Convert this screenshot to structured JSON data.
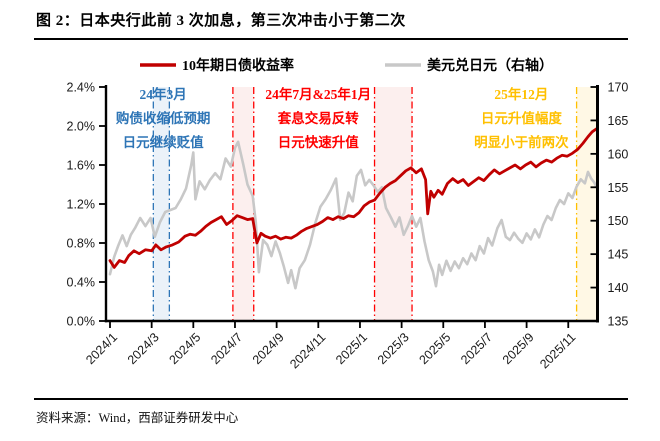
{
  "header": {
    "title": "图 2：日本央行此前 3 次加息，第三次冲击小于第二次"
  },
  "source": {
    "text": "资料来源：Wind，西部证券研发中心"
  },
  "colors": {
    "yield_line": "#C00000",
    "fx_line": "#C8C8C8",
    "annotation_blue": "#2E75B6",
    "annotation_red": "#FF0000",
    "annotation_yellow": "#FFC000",
    "axis": "#000000"
  },
  "chart_data": {
    "type": "line",
    "legend_position": "top",
    "grid": false,
    "legend": [
      {
        "name": "10年期日债收益率",
        "color": "#C00000",
        "axis": "left"
      },
      {
        "name": "美元兑日元（右轴）",
        "color": "#C8C8C8",
        "axis": "right"
      }
    ],
    "left_axis": {
      "min": 0,
      "max": 2.4,
      "ticks": [
        [
          0,
          "0.0%"
        ],
        [
          0.4,
          "0.4%"
        ],
        [
          0.8,
          "0.8%"
        ],
        [
          1.2,
          "1.2%"
        ],
        [
          1.6,
          "1.6%"
        ],
        [
          2.0,
          "2.0%"
        ],
        [
          2.4,
          "2.4%"
        ]
      ]
    },
    "right_axis": {
      "min": 135,
      "max": 170,
      "ticks": [
        [
          135,
          "135"
        ],
        [
          140,
          "140"
        ],
        [
          145,
          "145"
        ],
        [
          150,
          "150"
        ],
        [
          155,
          "155"
        ],
        [
          160,
          "160"
        ],
        [
          165,
          "165"
        ],
        [
          170,
          "170"
        ]
      ]
    },
    "x_ticks": [
      [
        0,
        "2024/1"
      ],
      [
        2,
        "2024/3"
      ],
      [
        4,
        "2024/5"
      ],
      [
        6,
        "2024/7"
      ],
      [
        8,
        "2024/9"
      ],
      [
        10,
        "2024/11"
      ],
      [
        12,
        "2025/1"
      ],
      [
        14,
        "2025/3"
      ],
      [
        16,
        "2025/5"
      ],
      [
        18,
        "2025/7"
      ],
      [
        20,
        "2025/9"
      ],
      [
        22,
        "2025/11"
      ]
    ],
    "x_unit": "month index from 2024/1",
    "regions": [
      {
        "name": "2024-03 hike",
        "x_start_t": 2.08,
        "x_end_t": 2.85,
        "border": "#2E75B6",
        "fill": "#EBF2F9"
      },
      {
        "name": "2024-07 hike",
        "x_start_t": 5.9,
        "x_end_t": 6.9,
        "border": "#FF0000",
        "fill": "#FCEFEE"
      },
      {
        "name": "2025-01 hike",
        "x_start_t": 12.7,
        "x_end_t": 14.5,
        "border": "#FF0000",
        "fill": "#FCEFEE"
      },
      {
        "name": "2025-12 hike",
        "x_start_t": 22.4,
        "x_end_t": 23.4,
        "border": "#FFC000",
        "fill": "#FFF8E5"
      }
    ],
    "annotations": [
      {
        "lines": [
          "24年3月",
          "购债收缩低预期",
          "日元继续贬值"
        ],
        "color": "#2E75B6",
        "anchor_t": 2.55
      },
      {
        "lines": [
          "24年7月&25年1月",
          "套息交易反转",
          "日元快速升值"
        ],
        "color": "#FF0000",
        "anchor_t": 10.0
      },
      {
        "lines": [
          "25年12月",
          "日元升值幅度",
          "明显小于前两次"
        ],
        "color": "#FFC000",
        "anchor_t": 19.75
      }
    ],
    "series": [
      {
        "name": "10年期日债收益率",
        "data_name": "jgb-10y-yield-line",
        "axis": "left",
        "color": "#C00000",
        "width": 2.8,
        "points": [
          [
            0,
            0.62
          ],
          [
            0.2,
            0.55
          ],
          [
            0.45,
            0.62
          ],
          [
            0.7,
            0.6
          ],
          [
            0.9,
            0.67
          ],
          [
            1.15,
            0.72
          ],
          [
            1.4,
            0.69
          ],
          [
            1.7,
            0.73
          ],
          [
            2,
            0.72
          ],
          [
            2.2,
            0.78
          ],
          [
            2.45,
            0.73
          ],
          [
            2.7,
            0.76
          ],
          [
            3,
            0.78
          ],
          [
            3.3,
            0.81
          ],
          [
            3.6,
            0.87
          ],
          [
            3.85,
            0.89
          ],
          [
            4.1,
            0.88
          ],
          [
            4.35,
            0.92
          ],
          [
            4.6,
            0.97
          ],
          [
            4.85,
            1.01
          ],
          [
            5.1,
            1.04
          ],
          [
            5.35,
            1.07
          ],
          [
            5.6,
            0.99
          ],
          [
            5.85,
            1.03
          ],
          [
            6.1,
            1.08
          ],
          [
            6.35,
            1.06
          ],
          [
            6.6,
            1.04
          ],
          [
            6.85,
            1.05
          ],
          [
            7.05,
            0.8
          ],
          [
            7.25,
            0.9
          ],
          [
            7.45,
            0.87
          ],
          [
            7.7,
            0.85
          ],
          [
            7.95,
            0.87
          ],
          [
            8.2,
            0.84
          ],
          [
            8.45,
            0.86
          ],
          [
            8.7,
            0.85
          ],
          [
            8.95,
            0.88
          ],
          [
            9.2,
            0.92
          ],
          [
            9.45,
            0.95
          ],
          [
            9.7,
            0.97
          ],
          [
            9.95,
            0.99
          ],
          [
            10.2,
            1.02
          ],
          [
            10.45,
            1.06
          ],
          [
            10.7,
            1.04
          ],
          [
            10.95,
            1.07
          ],
          [
            11.2,
            1.05
          ],
          [
            11.45,
            1.08
          ],
          [
            11.7,
            1.07
          ],
          [
            11.95,
            1.11
          ],
          [
            12.2,
            1.18
          ],
          [
            12.45,
            1.22
          ],
          [
            12.7,
            1.24
          ],
          [
            12.95,
            1.31
          ],
          [
            13.2,
            1.37
          ],
          [
            13.45,
            1.41
          ],
          [
            13.7,
            1.44
          ],
          [
            13.95,
            1.49
          ],
          [
            14.2,
            1.54
          ],
          [
            14.45,
            1.57
          ],
          [
            14.7,
            1.52
          ],
          [
            14.95,
            1.56
          ],
          [
            15.15,
            1.45
          ],
          [
            15.25,
            1.1
          ],
          [
            15.4,
            1.33
          ],
          [
            15.55,
            1.27
          ],
          [
            15.75,
            1.34
          ],
          [
            15.95,
            1.3
          ],
          [
            16.2,
            1.41
          ],
          [
            16.45,
            1.46
          ],
          [
            16.7,
            1.42
          ],
          [
            16.95,
            1.45
          ],
          [
            17.2,
            1.39
          ],
          [
            17.45,
            1.43
          ],
          [
            17.7,
            1.47
          ],
          [
            17.95,
            1.44
          ],
          [
            18.2,
            1.5
          ],
          [
            18.45,
            1.55
          ],
          [
            18.7,
            1.51
          ],
          [
            18.95,
            1.54
          ],
          [
            19.2,
            1.57
          ],
          [
            19.45,
            1.6
          ],
          [
            19.7,
            1.56
          ],
          [
            19.95,
            1.6
          ],
          [
            20.2,
            1.63
          ],
          [
            20.45,
            1.58
          ],
          [
            20.7,
            1.62
          ],
          [
            20.95,
            1.65
          ],
          [
            21.2,
            1.63
          ],
          [
            21.45,
            1.67
          ],
          [
            21.7,
            1.7
          ],
          [
            21.95,
            1.69
          ],
          [
            22.2,
            1.72
          ],
          [
            22.45,
            1.76
          ],
          [
            22.7,
            1.82
          ],
          [
            22.95,
            1.89
          ],
          [
            23.15,
            1.94
          ],
          [
            23.35,
            1.97
          ]
        ]
      },
      {
        "name": "美元兑日元（右轴）",
        "data_name": "usd-jpy-line",
        "axis": "right",
        "color": "#C8C8C8",
        "width": 2.6,
        "points": [
          [
            0,
            142
          ],
          [
            0.2,
            144.6
          ],
          [
            0.4,
            146.3
          ],
          [
            0.6,
            147.8
          ],
          [
            0.8,
            146.2
          ],
          [
            1,
            147.9
          ],
          [
            1.2,
            148.9
          ],
          [
            1.45,
            150.4
          ],
          [
            1.7,
            149.2
          ],
          [
            1.95,
            150.4
          ],
          [
            2.15,
            147.6
          ],
          [
            2.4,
            149.8
          ],
          [
            2.65,
            151.3
          ],
          [
            2.9,
            151.6
          ],
          [
            3.15,
            151.9
          ],
          [
            3.4,
            153.2
          ],
          [
            3.65,
            154.8
          ],
          [
            3.9,
            158.3
          ],
          [
            4,
            160.2
          ],
          [
            4.1,
            153.2
          ],
          [
            4.3,
            155.9
          ],
          [
            4.55,
            154.7
          ],
          [
            4.8,
            156.1
          ],
          [
            5.05,
            157.1
          ],
          [
            5.3,
            156.2
          ],
          [
            5.55,
            159.3
          ],
          [
            5.8,
            158.1
          ],
          [
            6,
            160.9
          ],
          [
            6.15,
            161.8
          ],
          [
            6.4,
            158.4
          ],
          [
            6.6,
            155.4
          ],
          [
            6.85,
            153.7
          ],
          [
            7,
            149.8
          ],
          [
            7.15,
            142.3
          ],
          [
            7.35,
            147.1
          ],
          [
            7.55,
            146.4
          ],
          [
            7.75,
            144.7
          ],
          [
            7.95,
            146.9
          ],
          [
            8.15,
            145.2
          ],
          [
            8.35,
            143.1
          ],
          [
            8.55,
            140.7
          ],
          [
            8.7,
            142.6
          ],
          [
            8.9,
            139.9
          ],
          [
            9.1,
            142.9
          ],
          [
            9.35,
            144.1
          ],
          [
            9.6,
            146.4
          ],
          [
            9.85,
            149.6
          ],
          [
            10.1,
            152.1
          ],
          [
            10.35,
            153.2
          ],
          [
            10.6,
            154.6
          ],
          [
            10.85,
            156.3
          ],
          [
            11.05,
            150.1
          ],
          [
            11.25,
            151.2
          ],
          [
            11.45,
            154.2
          ],
          [
            11.65,
            152.9
          ],
          [
            11.85,
            156.7
          ],
          [
            12.05,
            157.6
          ],
          [
            12.25,
            155.3
          ],
          [
            12.45,
            156.1
          ],
          [
            12.65,
            155.3
          ],
          [
            12.85,
            154.3
          ],
          [
            13.05,
            155
          ],
          [
            13.25,
            151.9
          ],
          [
            13.5,
            150.4
          ],
          [
            13.7,
            149.1
          ],
          [
            13.9,
            150.5
          ],
          [
            14.1,
            147.9
          ],
          [
            14.3,
            149.2
          ],
          [
            14.5,
            150.7
          ],
          [
            14.7,
            149.1
          ],
          [
            14.9,
            150.4
          ],
          [
            15.1,
            146.9
          ],
          [
            15.3,
            144.1
          ],
          [
            15.5,
            142.4
          ],
          [
            15.65,
            140.2
          ],
          [
            15.8,
            143.4
          ],
          [
            15.95,
            141.9
          ],
          [
            16.15,
            144
          ],
          [
            16.35,
            142.5
          ],
          [
            16.55,
            143.9
          ],
          [
            16.75,
            142.9
          ],
          [
            16.95,
            144.4
          ],
          [
            17.15,
            143.5
          ],
          [
            17.35,
            145.1
          ],
          [
            17.55,
            144.1
          ],
          [
            17.75,
            146.2
          ],
          [
            17.95,
            145.1
          ],
          [
            18.15,
            147.4
          ],
          [
            18.35,
            146.3
          ],
          [
            18.6,
            148.9
          ],
          [
            18.8,
            150.1
          ],
          [
            19,
            147.6
          ],
          [
            19.2,
            147.1
          ],
          [
            19.4,
            148.2
          ],
          [
            19.6,
            147.3
          ],
          [
            19.8,
            146.7
          ],
          [
            20,
            148.1
          ],
          [
            20.2,
            147.2
          ],
          [
            20.4,
            148.7
          ],
          [
            20.6,
            147.5
          ],
          [
            20.8,
            149.4
          ],
          [
            21,
            150.7
          ],
          [
            21.2,
            150.1
          ],
          [
            21.4,
            151.9
          ],
          [
            21.6,
            153.1
          ],
          [
            21.8,
            152.5
          ],
          [
            22,
            154.1
          ],
          [
            22.2,
            153.4
          ],
          [
            22.4,
            155.1
          ],
          [
            22.6,
            156.2
          ],
          [
            22.8,
            155.6
          ],
          [
            22.95,
            157.3
          ],
          [
            23.1,
            156.3
          ],
          [
            23.25,
            155.7
          ],
          [
            23.35,
            155.1
          ]
        ]
      }
    ]
  }
}
